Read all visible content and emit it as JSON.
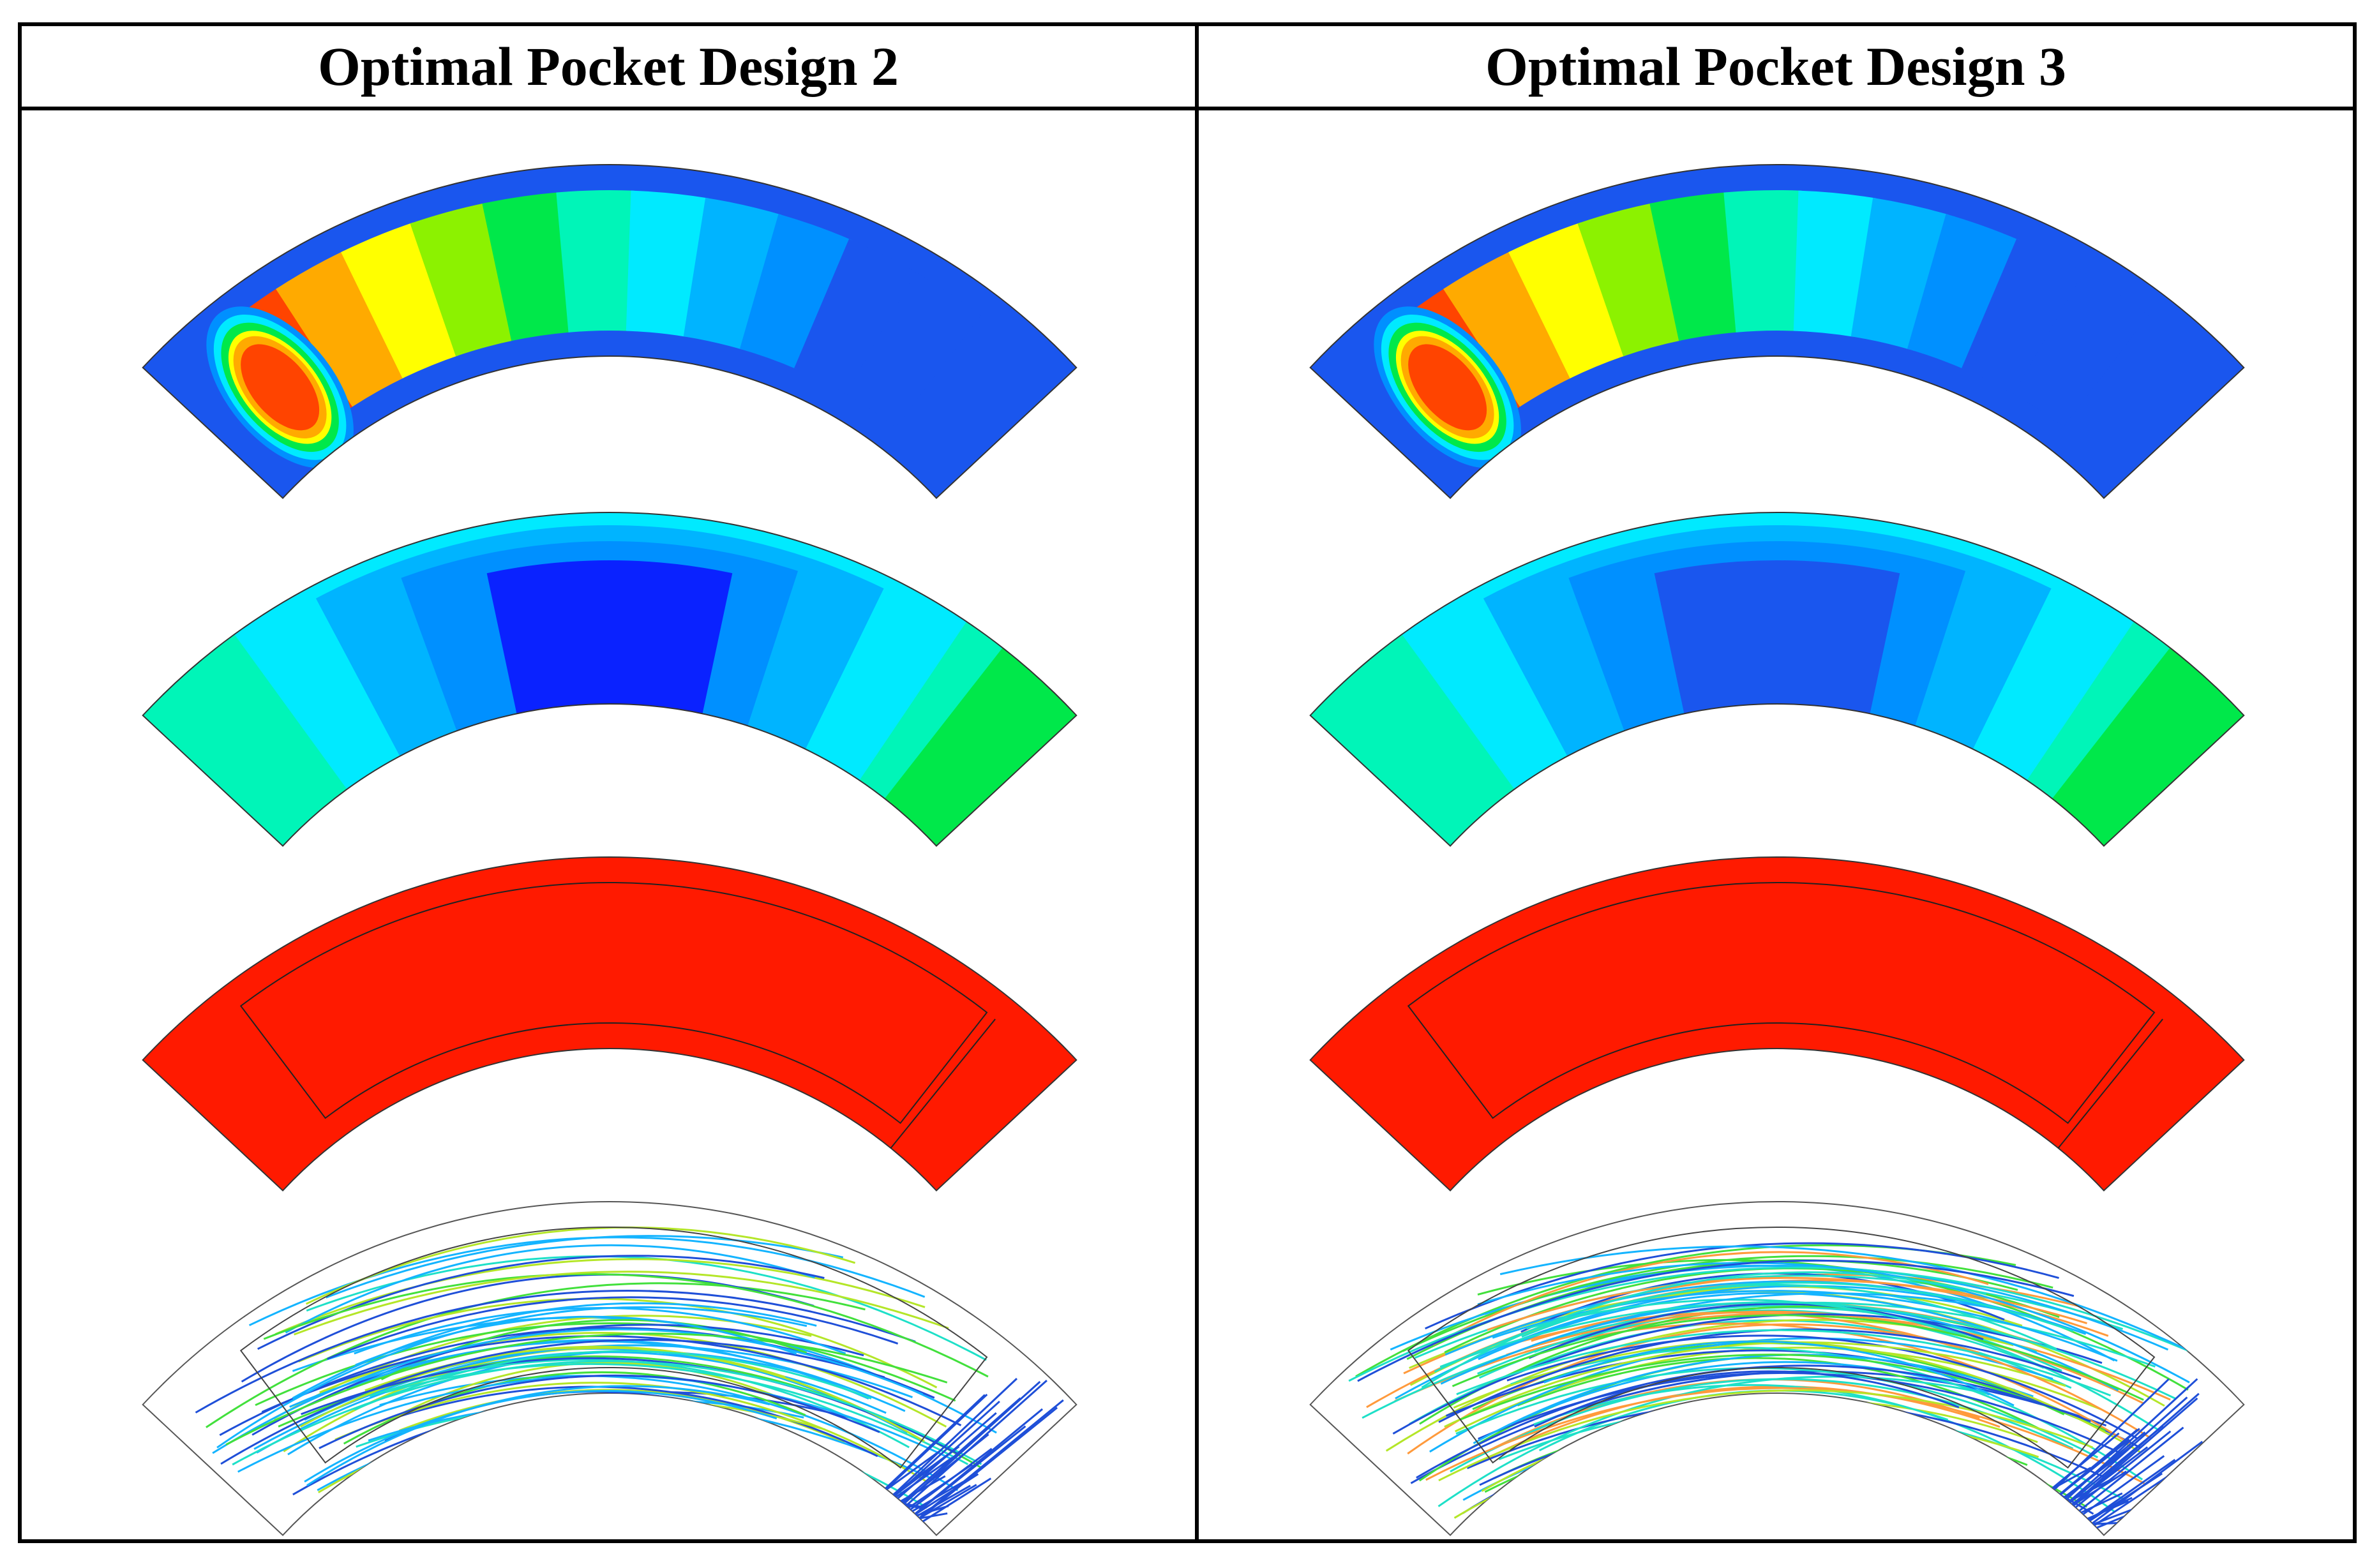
{
  "columns": [
    {
      "title": "Optimal Pocket Design 2"
    },
    {
      "title": "Optimal Pocket Design 3"
    }
  ],
  "colors": {
    "contour_scale": [
      "#0a22ff",
      "#1a56ee",
      "#0090ff",
      "#00b4ff",
      "#00eaff",
      "#00f5b8",
      "#00e84a",
      "#8cf200",
      "#ffff00",
      "#ffaa00",
      "#ff4400"
    ],
    "fill_red": "#ff1a00",
    "streamline": [
      "#1f4fd8",
      "#14b4ff",
      "#1ee0c8",
      "#42e03c",
      "#b4e628",
      "#ff9a3c"
    ]
  },
  "rows": [
    {
      "kind": "pressure-contour"
    },
    {
      "kind": "contour-blue-field"
    },
    {
      "kind": "volume-fraction-red"
    },
    {
      "kind": "streamlines"
    }
  ]
}
